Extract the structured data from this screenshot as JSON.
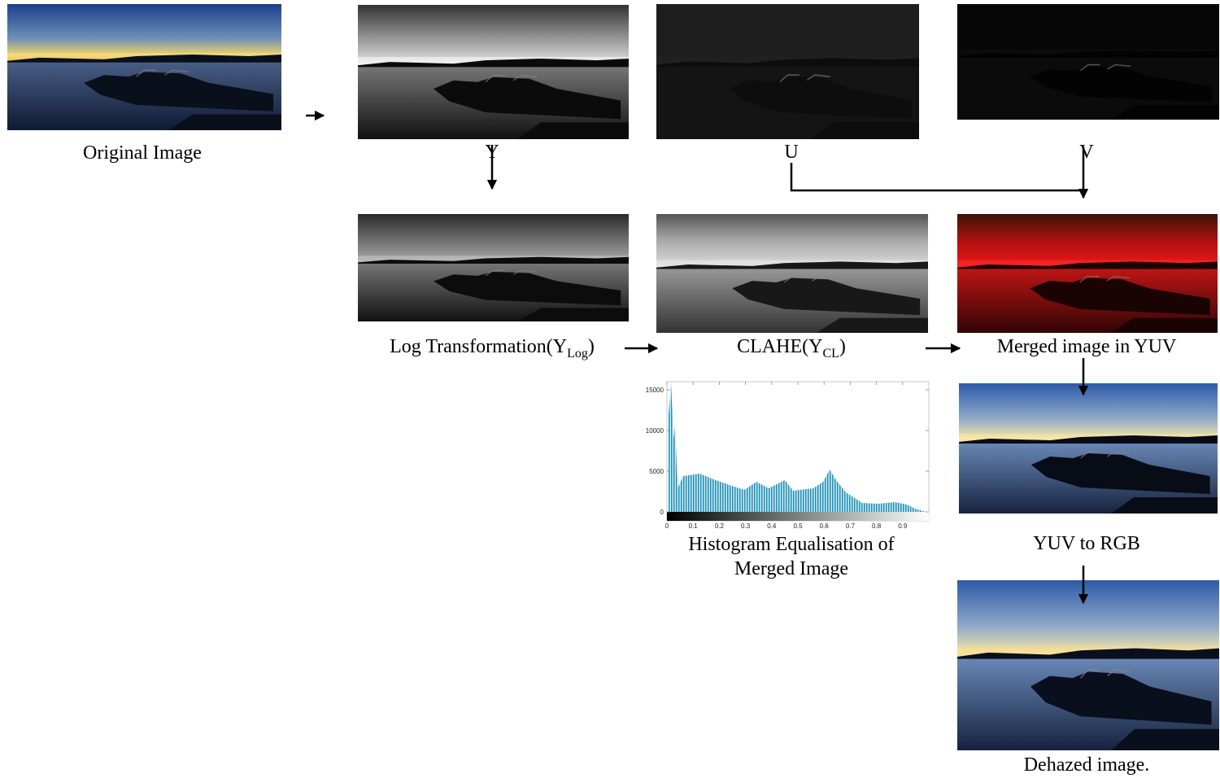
{
  "stages": {
    "original": "Original Image",
    "y": "Y",
    "u": "U",
    "v": "V",
    "log": {
      "text": "Log Transformation(Y",
      "sub": "Log",
      "tail": ")"
    },
    "clahe": {
      "text": "CLAHE(Y",
      "sub": "CL",
      "tail": ")"
    },
    "merged": "Merged image in YUV",
    "rgb": "YUV to RGB",
    "dehazed": "Dehazed image."
  },
  "histogram": {
    "caption": [
      "Histogram Equalisation of",
      "Merged Image"
    ],
    "ylim": [
      0,
      16000
    ],
    "yticks": [
      0,
      5000,
      10000,
      15000
    ],
    "xlim": [
      0,
      1
    ],
    "xticks": [
      0,
      0.1,
      0.2,
      0.3,
      0.4,
      0.5,
      0.6,
      0.7,
      0.8,
      0.9
    ]
  }
}
